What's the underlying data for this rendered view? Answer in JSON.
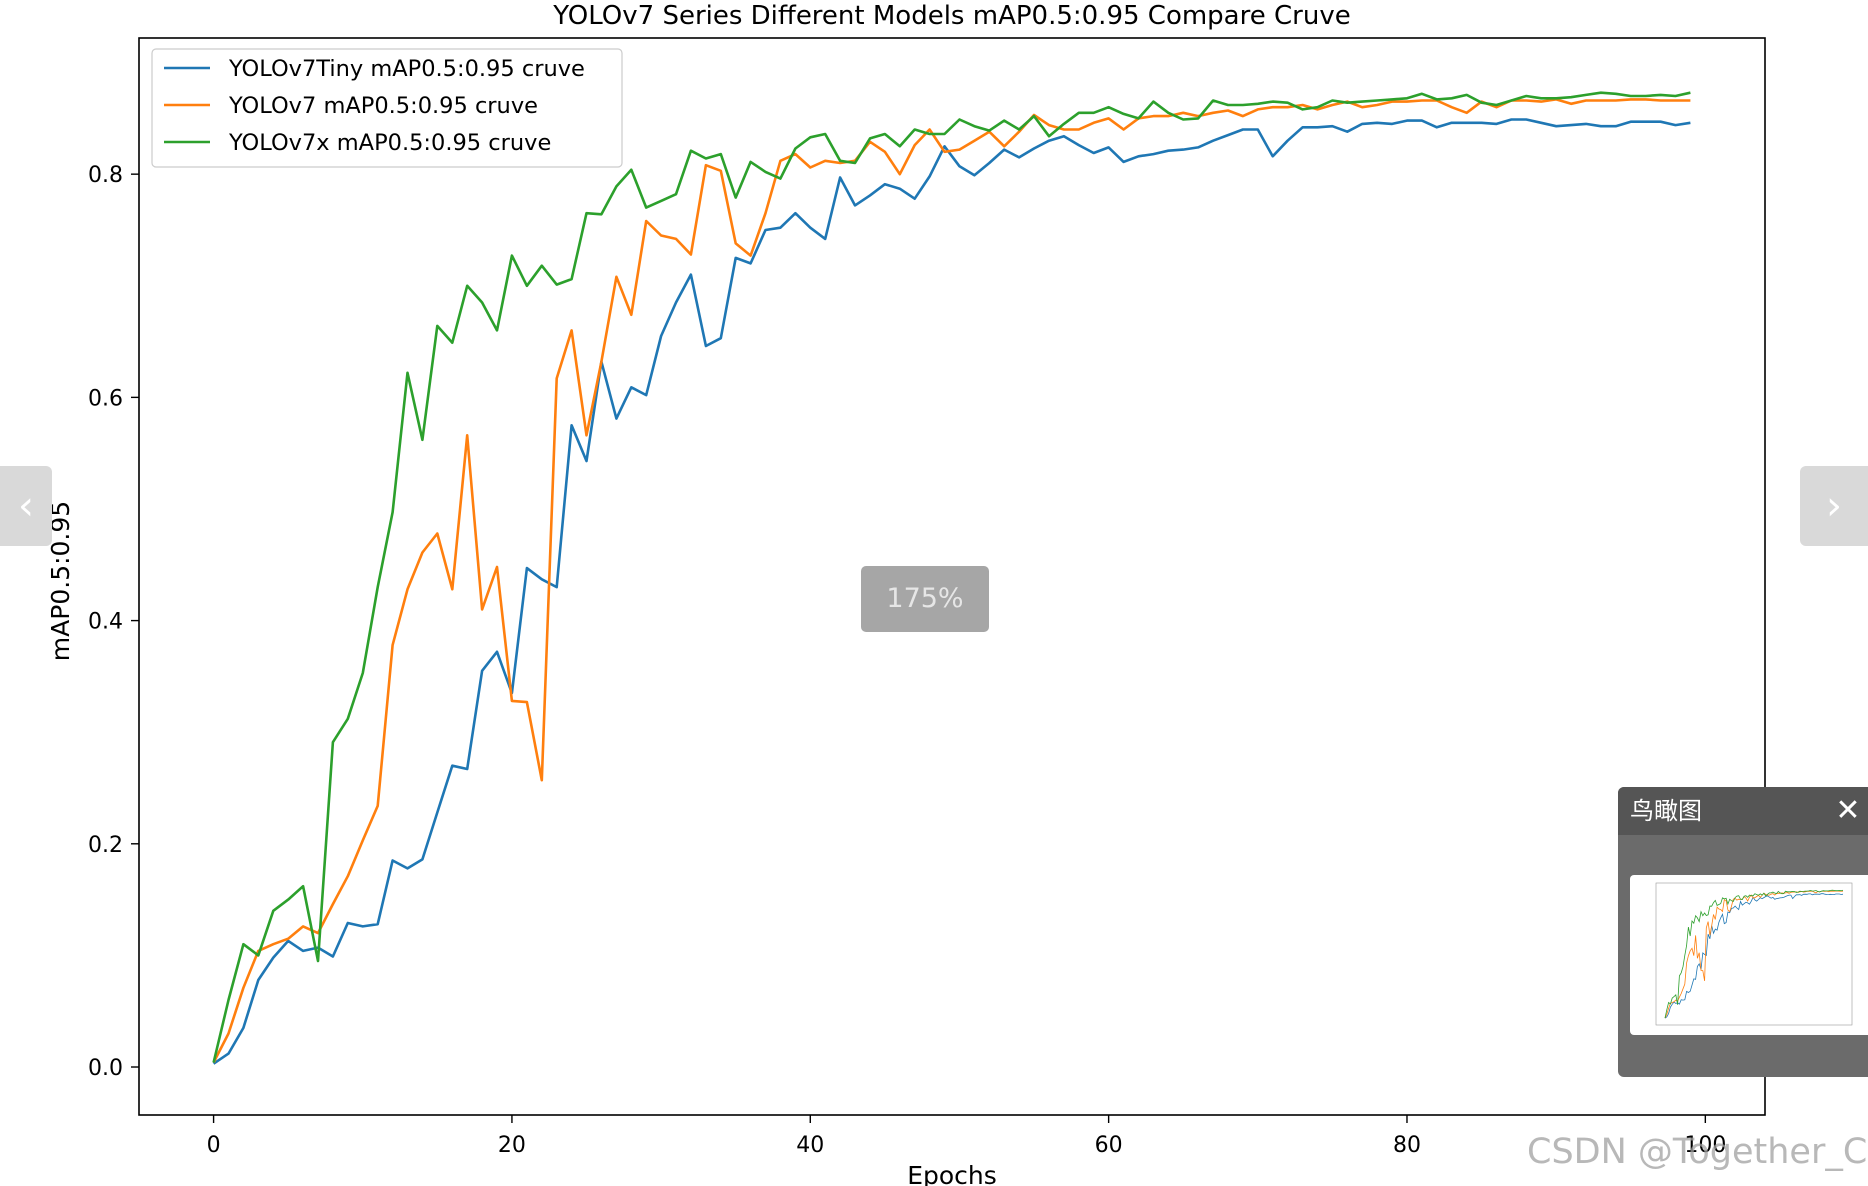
{
  "chart_data": {
    "type": "line",
    "title": "YOLOv7 Series Different Models mAP0.5:0.95 Compare Cruve",
    "xlabel": "Epochs",
    "ylabel": "mAP0.5:0.95",
    "xlim": [
      -5,
      104
    ],
    "ylim": [
      -0.043,
      0.922
    ],
    "xticks": [
      0,
      20,
      40,
      60,
      80,
      100
    ],
    "yticks": [
      0.0,
      0.2,
      0.4,
      0.6,
      0.8
    ],
    "grid": false,
    "legend": "top-left",
    "x": [
      0,
      1,
      2,
      3,
      4,
      5,
      6,
      7,
      8,
      9,
      10,
      11,
      12,
      13,
      14,
      15,
      16,
      17,
      18,
      19,
      20,
      21,
      22,
      23,
      24,
      25,
      26,
      27,
      28,
      29,
      30,
      31,
      32,
      33,
      34,
      35,
      36,
      37,
      38,
      39,
      40,
      41,
      42,
      43,
      44,
      45,
      46,
      47,
      48,
      49,
      50,
      51,
      52,
      53,
      54,
      55,
      56,
      57,
      58,
      59,
      60,
      61,
      62,
      63,
      64,
      65,
      66,
      67,
      68,
      69,
      70,
      71,
      72,
      73,
      74,
      75,
      76,
      77,
      78,
      79,
      80,
      81,
      82,
      83,
      84,
      85,
      86,
      87,
      88,
      89,
      90,
      91,
      92,
      93,
      94,
      95,
      96,
      97,
      98,
      99
    ],
    "series": [
      {
        "name": "YOLOv7Tiny mAP0.5:0.95 cruve",
        "color": "#1f77b4",
        "values": [
          0.003,
          0.012,
          0.035,
          0.078,
          0.098,
          0.113,
          0.104,
          0.107,
          0.099,
          0.129,
          0.126,
          0.128,
          0.185,
          0.178,
          0.186,
          0.228,
          0.27,
          0.267,
          0.355,
          0.372,
          0.335,
          0.447,
          0.437,
          0.43,
          0.575,
          0.543,
          0.632,
          0.581,
          0.609,
          0.602,
          0.655,
          0.685,
          0.71,
          0.646,
          0.653,
          0.725,
          0.72,
          0.75,
          0.752,
          0.765,
          0.752,
          0.742,
          0.797,
          0.772,
          0.781,
          0.791,
          0.787,
          0.778,
          0.798,
          0.825,
          0.807,
          0.799,
          0.81,
          0.822,
          0.815,
          0.823,
          0.83,
          0.834,
          0.826,
          0.819,
          0.824,
          0.811,
          0.816,
          0.818,
          0.821,
          0.822,
          0.824,
          0.83,
          0.835,
          0.84,
          0.84,
          0.816,
          0.83,
          0.842,
          0.842,
          0.843,
          0.838,
          0.845,
          0.846,
          0.845,
          0.848,
          0.848,
          0.842,
          0.846,
          0.846,
          0.846,
          0.845,
          0.849,
          0.849,
          0.846,
          0.843,
          0.844,
          0.845,
          0.843,
          0.843,
          0.847,
          0.847,
          0.847,
          0.844,
          0.846
        ]
      },
      {
        "name": "YOLOv7 mAP0.5:0.95 cruve",
        "color": "#ff7f0e",
        "values": [
          0.004,
          0.03,
          0.071,
          0.104,
          0.11,
          0.115,
          0.126,
          0.12,
          0.146,
          0.171,
          0.203,
          0.234,
          0.378,
          0.428,
          0.461,
          0.478,
          0.428,
          0.566,
          0.41,
          0.448,
          0.328,
          0.327,
          0.257,
          0.617,
          0.66,
          0.566,
          0.632,
          0.708,
          0.674,
          0.758,
          0.745,
          0.742,
          0.728,
          0.808,
          0.803,
          0.738,
          0.727,
          0.765,
          0.812,
          0.818,
          0.806,
          0.812,
          0.81,
          0.812,
          0.829,
          0.82,
          0.8,
          0.826,
          0.84,
          0.82,
          0.822,
          0.83,
          0.838,
          0.825,
          0.838,
          0.853,
          0.844,
          0.84,
          0.84,
          0.846,
          0.85,
          0.84,
          0.85,
          0.852,
          0.852,
          0.855,
          0.852,
          0.855,
          0.857,
          0.852,
          0.858,
          0.86,
          0.86,
          0.862,
          0.858,
          0.862,
          0.865,
          0.86,
          0.862,
          0.865,
          0.865,
          0.866,
          0.866,
          0.86,
          0.855,
          0.865,
          0.86,
          0.866,
          0.866,
          0.865,
          0.867,
          0.863,
          0.866,
          0.866,
          0.866,
          0.867,
          0.867,
          0.866,
          0.866,
          0.866
        ]
      },
      {
        "name": "YOLOv7x mAP0.5:0.95 cruve",
        "color": "#2ca02c",
        "values": [
          0.004,
          0.06,
          0.11,
          0.1,
          0.14,
          0.15,
          0.162,
          0.095,
          0.291,
          0.312,
          0.353,
          0.43,
          0.497,
          0.622,
          0.562,
          0.664,
          0.649,
          0.7,
          0.685,
          0.66,
          0.727,
          0.7,
          0.718,
          0.701,
          0.706,
          0.765,
          0.764,
          0.789,
          0.804,
          0.77,
          0.776,
          0.782,
          0.821,
          0.814,
          0.818,
          0.779,
          0.811,
          0.802,
          0.796,
          0.823,
          0.833,
          0.836,
          0.812,
          0.81,
          0.832,
          0.836,
          0.825,
          0.84,
          0.836,
          0.836,
          0.849,
          0.843,
          0.839,
          0.848,
          0.84,
          0.852,
          0.834,
          0.845,
          0.855,
          0.855,
          0.86,
          0.854,
          0.85,
          0.865,
          0.855,
          0.849,
          0.85,
          0.866,
          0.862,
          0.862,
          0.863,
          0.865,
          0.864,
          0.858,
          0.86,
          0.866,
          0.864,
          0.865,
          0.866,
          0.867,
          0.868,
          0.872,
          0.867,
          0.868,
          0.871,
          0.864,
          0.862,
          0.866,
          0.87,
          0.868,
          0.868,
          0.869,
          0.871,
          0.873,
          0.872,
          0.87,
          0.87,
          0.871,
          0.87,
          0.873
        ]
      }
    ]
  },
  "ui": {
    "prev_icon": "chevron-left-icon",
    "prev_glyph": "‹",
    "next_icon": "chevron-right-icon",
    "next_glyph": "›",
    "zoom_level": "175%",
    "birdseye_title": "鸟瞰图",
    "close_icon": "close-icon",
    "close_glyph": "✕",
    "watermark": "CSDN @Together_CZ"
  }
}
